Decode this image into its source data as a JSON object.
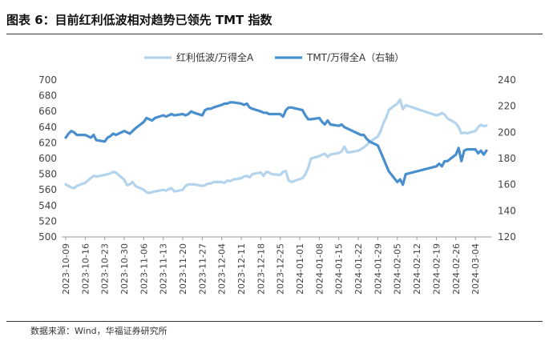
{
  "header": {
    "title": "图表 6：目前红利低波相对趋势已领先 TMT 指数"
  },
  "footer": {
    "source": "数据来源：Wind，华福证券研究所"
  },
  "chart_data": {
    "type": "line",
    "title": "图表 6：目前红利低波相对趋势已领先 TMT 指数",
    "legend_position": "top-center",
    "grid": false,
    "x_tick_labels": [
      "2023-10-09",
      "2023-10-16",
      "2023-10-23",
      "2023-10-30",
      "2023-11-06",
      "2023-11-13",
      "2023-11-20",
      "2023-11-27",
      "2023-12-04",
      "2023-12-11",
      "2023-12-18",
      "2023-12-25",
      "2024-01-01",
      "2024-01-08",
      "2024-01-15",
      "2024-01-22",
      "2024-01-29",
      "2024-02-05",
      "2024-02-12",
      "2024-02-19",
      "2024-02-26",
      "2024-03-04"
    ],
    "x_range": [
      "2023-10-09",
      "2024-03-08"
    ],
    "y_left": {
      "min": 500,
      "max": 700,
      "step": 20
    },
    "y_right": {
      "min": 120,
      "max": 240,
      "step": 20
    },
    "y_left_ticks": [
      "500",
      "520",
      "540",
      "560",
      "580",
      "600",
      "620",
      "640",
      "660",
      "680",
      "700"
    ],
    "y_right_ticks": [
      "120",
      "140",
      "160",
      "180",
      "200",
      "220",
      "240"
    ],
    "series": [
      {
        "name": "红利低波/万得全A",
        "axis": "left",
        "color": "#b4d4ee",
        "points": [
          [
            "2023-10-09",
            567
          ],
          [
            "2023-10-10",
            565
          ],
          [
            "2023-10-11",
            563
          ],
          [
            "2023-10-12",
            562
          ],
          [
            "2023-10-13",
            565
          ],
          [
            "2023-10-16",
            569
          ],
          [
            "2023-10-17",
            572
          ],
          [
            "2023-10-18",
            575
          ],
          [
            "2023-10-19",
            578
          ],
          [
            "2023-10-20",
            577
          ],
          [
            "2023-10-23",
            579
          ],
          [
            "2023-10-24",
            580
          ],
          [
            "2023-10-25",
            581
          ],
          [
            "2023-10-26",
            583
          ],
          [
            "2023-10-27",
            582
          ],
          [
            "2023-10-30",
            573
          ],
          [
            "2023-10-31",
            566
          ],
          [
            "2023-11-01",
            567
          ],
          [
            "2023-11-02",
            570
          ],
          [
            "2023-11-03",
            565
          ],
          [
            "2023-11-06",
            560
          ],
          [
            "2023-11-07",
            557
          ],
          [
            "2023-11-08",
            556
          ],
          [
            "2023-11-09",
            557
          ],
          [
            "2023-11-10",
            558
          ],
          [
            "2023-11-13",
            560
          ],
          [
            "2023-11-14",
            559
          ],
          [
            "2023-11-15",
            561
          ],
          [
            "2023-11-16",
            562
          ],
          [
            "2023-11-17",
            558
          ],
          [
            "2023-11-20",
            560
          ],
          [
            "2023-11-21",
            565
          ],
          [
            "2023-11-22",
            567
          ],
          [
            "2023-11-23",
            567
          ],
          [
            "2023-11-24",
            567
          ],
          [
            "2023-11-27",
            565
          ],
          [
            "2023-11-28",
            566
          ],
          [
            "2023-11-29",
            568
          ],
          [
            "2023-11-30",
            568
          ],
          [
            "2023-12-01",
            570
          ],
          [
            "2023-12-04",
            570
          ],
          [
            "2023-12-05",
            569
          ],
          [
            "2023-12-06",
            572
          ],
          [
            "2023-12-07",
            571
          ],
          [
            "2023-12-08",
            573
          ],
          [
            "2023-12-11",
            575
          ],
          [
            "2023-12-12",
            577
          ],
          [
            "2023-12-13",
            578
          ],
          [
            "2023-12-14",
            576
          ],
          [
            "2023-12-15",
            580
          ],
          [
            "2023-12-18",
            582
          ],
          [
            "2023-12-19",
            578
          ],
          [
            "2023-12-20",
            583
          ],
          [
            "2023-12-21",
            582
          ],
          [
            "2023-12-22",
            580
          ],
          [
            "2023-12-25",
            579
          ],
          [
            "2023-12-26",
            583
          ],
          [
            "2023-12-27",
            584
          ],
          [
            "2023-12-28",
            572
          ],
          [
            "2023-12-29",
            570
          ],
          [
            "2024-01-02",
            575
          ],
          [
            "2024-01-03",
            580
          ],
          [
            "2024-01-04",
            588
          ],
          [
            "2024-01-05",
            600
          ],
          [
            "2024-01-08",
            603
          ],
          [
            "2024-01-09",
            605
          ],
          [
            "2024-01-10",
            606
          ],
          [
            "2024-01-11",
            602
          ],
          [
            "2024-01-12",
            605
          ],
          [
            "2024-01-15",
            607
          ],
          [
            "2024-01-16",
            609
          ],
          [
            "2024-01-17",
            615
          ],
          [
            "2024-01-18",
            608
          ],
          [
            "2024-01-19",
            608
          ],
          [
            "2024-01-22",
            610
          ],
          [
            "2024-01-23",
            612
          ],
          [
            "2024-01-24",
            614
          ],
          [
            "2024-01-25",
            617
          ],
          [
            "2024-01-26",
            621
          ],
          [
            "2024-01-29",
            628
          ],
          [
            "2024-01-30",
            635
          ],
          [
            "2024-01-31",
            645
          ],
          [
            "2024-02-01",
            652
          ],
          [
            "2024-02-02",
            662
          ],
          [
            "2024-02-05",
            670
          ],
          [
            "2024-02-06",
            675
          ],
          [
            "2024-02-07",
            663
          ],
          [
            "2024-02-08",
            668
          ],
          [
            "2024-02-19",
            655
          ],
          [
            "2024-02-20",
            656
          ],
          [
            "2024-02-21",
            658
          ],
          [
            "2024-02-22",
            656
          ],
          [
            "2024-02-23",
            651
          ],
          [
            "2024-02-26",
            645
          ],
          [
            "2024-02-27",
            640
          ],
          [
            "2024-02-28",
            632
          ],
          [
            "2024-02-29",
            633
          ],
          [
            "2024-03-01",
            632
          ],
          [
            "2024-03-04",
            635
          ],
          [
            "2024-03-05",
            640
          ],
          [
            "2024-03-06",
            643
          ],
          [
            "2024-03-07",
            641
          ],
          [
            "2024-03-08",
            642
          ]
        ]
      },
      {
        "name": "TMT/万得全A（右轴）",
        "axis": "right",
        "color": "#4a8fcd",
        "points": [
          [
            "2023-10-09",
            196
          ],
          [
            "2023-10-10",
            199
          ],
          [
            "2023-10-11",
            201
          ],
          [
            "2023-10-12",
            200
          ],
          [
            "2023-10-13",
            198
          ],
          [
            "2023-10-16",
            198
          ],
          [
            "2023-10-17",
            197
          ],
          [
            "2023-10-18",
            196
          ],
          [
            "2023-10-19",
            198
          ],
          [
            "2023-10-20",
            194
          ],
          [
            "2023-10-23",
            193
          ],
          [
            "2023-10-24",
            196
          ],
          [
            "2023-10-25",
            197
          ],
          [
            "2023-10-26",
            199
          ],
          [
            "2023-10-27",
            198
          ],
          [
            "2023-10-30",
            201
          ],
          [
            "2023-10-31",
            200
          ],
          [
            "2023-11-01",
            199
          ],
          [
            "2023-11-02",
            201
          ],
          [
            "2023-11-03",
            203
          ],
          [
            "2023-11-06",
            208
          ],
          [
            "2023-11-07",
            211
          ],
          [
            "2023-11-08",
            210
          ],
          [
            "2023-11-09",
            209
          ],
          [
            "2023-11-10",
            211
          ],
          [
            "2023-11-13",
            213
          ],
          [
            "2023-11-14",
            212
          ],
          [
            "2023-11-15",
            213
          ],
          [
            "2023-11-16",
            214
          ],
          [
            "2023-11-17",
            213
          ],
          [
            "2023-11-20",
            214
          ],
          [
            "2023-11-21",
            213
          ],
          [
            "2023-11-22",
            214
          ],
          [
            "2023-11-23",
            216
          ],
          [
            "2023-11-24",
            215
          ],
          [
            "2023-11-27",
            213
          ],
          [
            "2023-11-28",
            217
          ],
          [
            "2023-11-29",
            218
          ],
          [
            "2023-11-30",
            218
          ],
          [
            "2023-12-01",
            219
          ],
          [
            "2023-12-04",
            221
          ],
          [
            "2023-12-05",
            222
          ],
          [
            "2023-12-06",
            222
          ],
          [
            "2023-12-07",
            223
          ],
          [
            "2023-12-08",
            223
          ],
          [
            "2023-12-11",
            222
          ],
          [
            "2023-12-12",
            221
          ],
          [
            "2023-12-13",
            222
          ],
          [
            "2023-12-14",
            219
          ],
          [
            "2023-12-15",
            218
          ],
          [
            "2023-12-18",
            216
          ],
          [
            "2023-12-19",
            215
          ],
          [
            "2023-12-20",
            215
          ],
          [
            "2023-12-21",
            214
          ],
          [
            "2023-12-22",
            214
          ],
          [
            "2023-12-25",
            214
          ],
          [
            "2023-12-26",
            212
          ],
          [
            "2023-12-27",
            217
          ],
          [
            "2023-12-28",
            219
          ],
          [
            "2023-12-29",
            219
          ],
          [
            "2024-01-02",
            217
          ],
          [
            "2024-01-03",
            213
          ],
          [
            "2024-01-04",
            210
          ],
          [
            "2024-01-05",
            210
          ],
          [
            "2024-01-08",
            211
          ],
          [
            "2024-01-09",
            208
          ],
          [
            "2024-01-10",
            206
          ],
          [
            "2024-01-11",
            209
          ],
          [
            "2024-01-12",
            206
          ],
          [
            "2024-01-15",
            205
          ],
          [
            "2024-01-16",
            206
          ],
          [
            "2024-01-17",
            204
          ],
          [
            "2024-01-18",
            203
          ],
          [
            "2024-01-19",
            202
          ],
          [
            "2024-01-22",
            199
          ],
          [
            "2024-01-23",
            198
          ],
          [
            "2024-01-24",
            198
          ],
          [
            "2024-01-25",
            195
          ],
          [
            "2024-01-26",
            193
          ],
          [
            "2024-01-29",
            190
          ],
          [
            "2024-01-30",
            185
          ],
          [
            "2024-01-31",
            180
          ],
          [
            "2024-02-01",
            175
          ],
          [
            "2024-02-02",
            170
          ],
          [
            "2024-02-05",
            162
          ],
          [
            "2024-02-06",
            164
          ],
          [
            "2024-02-07",
            160
          ],
          [
            "2024-02-08",
            168
          ],
          [
            "2024-02-19",
            174
          ],
          [
            "2024-02-20",
            176
          ],
          [
            "2024-02-21",
            174
          ],
          [
            "2024-02-22",
            178
          ],
          [
            "2024-02-23",
            178
          ],
          [
            "2024-02-26",
            183
          ],
          [
            "2024-02-27",
            188
          ],
          [
            "2024-02-28",
            178
          ],
          [
            "2024-02-29",
            186
          ],
          [
            "2024-03-01",
            187
          ],
          [
            "2024-03-04",
            187
          ],
          [
            "2024-03-05",
            184
          ],
          [
            "2024-03-06",
            186
          ],
          [
            "2024-03-07",
            183
          ],
          [
            "2024-03-08",
            186
          ]
        ]
      }
    ]
  }
}
